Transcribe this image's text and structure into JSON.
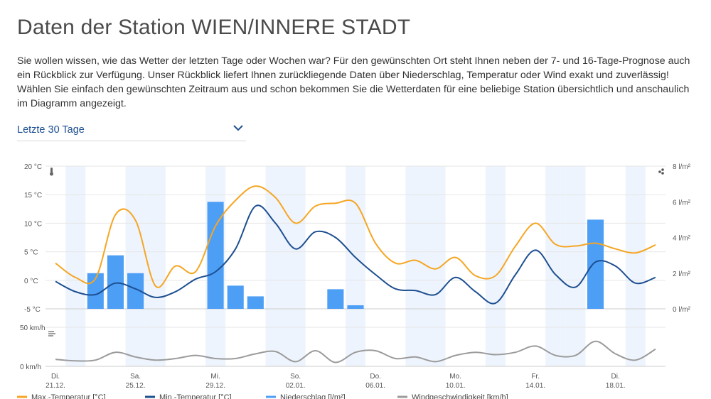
{
  "page": {
    "title": "Daten der Station WIEN/INNERE STADT",
    "intro": "Sie wollen wissen, wie das Wetter der letzten Tage oder Wochen war? Für den gewünschten Ort steht Ihnen neben der 7- und 16-Tage-Prognose auch ein Rückblick zur Verfügung. Unser Rückblick liefert Ihnen zurückliegende Daten über Niederschlag, Temperatur oder Wind exakt und zuverlässig! Wählen Sie einfach den gewünschten Zeitraum aus und schon bekommen Sie die Wetterdaten für eine beliebige Station übersichtlich und anschaulich im Diagramm angezeigt."
  },
  "period_select": {
    "value": "Letzte 30 Tage",
    "icon": "chevron-down-icon"
  },
  "colors": {
    "max_temp": "#f5a623",
    "min_temp": "#1d4f91",
    "precip": "#4d9ef5",
    "wind": "#9b9b9b",
    "weekend_band": "#eef4fd",
    "accent": "#1d4f91"
  },
  "chart_data": [
    {
      "type": "line",
      "icons": {
        "left": "thermometer-icon",
        "right": "raindrops-icon"
      },
      "y_left": {
        "ticks": [
          20,
          15,
          10,
          5,
          0,
          -5
        ],
        "labels": [
          "20 °C",
          "15 °C",
          "10 °C",
          "5 °C",
          "0 °C",
          "-5 °C"
        ],
        "range": [
          -5,
          20
        ]
      },
      "y_right": {
        "ticks": [
          8,
          6,
          4,
          2,
          0
        ],
        "labels": [
          "8 l/m²",
          "6 l/m²",
          "4 l/m²",
          "2 l/m²",
          "0 l/m²"
        ],
        "range": [
          0,
          8
        ]
      },
      "x_days": 31,
      "series": [
        {
          "name": "Max.-Temperatur [°C]",
          "axis": "left",
          "kind": "line",
          "values": [
            3.0,
            0.5,
            0.3,
            11.5,
            10.5,
            -1.0,
            2.5,
            1.5,
            9.5,
            14.0,
            16.5,
            14.5,
            10.0,
            13.0,
            13.5,
            13.5,
            6.5,
            3.0,
            3.5,
            2.0,
            4.0,
            0.8,
            0.8,
            6.0,
            10.0,
            6.3,
            6.0,
            6.5,
            5.5,
            4.8,
            6.2
          ]
        },
        {
          "name": "Min.-Temperatur [°C]",
          "axis": "left",
          "kind": "line",
          "values": [
            -0.2,
            -2.0,
            -2.5,
            -0.5,
            -1.5,
            -3.0,
            -2.0,
            0.2,
            1.5,
            5.5,
            13.0,
            10.0,
            5.5,
            8.5,
            7.5,
            4.0,
            1.0,
            -1.5,
            -1.8,
            -2.5,
            0.5,
            -2.0,
            -4.0,
            1.0,
            5.3,
            1.0,
            -1.2,
            3.2,
            2.5,
            -0.5,
            0.5
          ]
        },
        {
          "name": "Niederschlag [l/m²]",
          "axis": "right",
          "kind": "bar",
          "values": [
            0,
            0,
            2.0,
            3.0,
            2.0,
            0,
            0,
            0,
            6.0,
            1.3,
            0.7,
            0,
            0,
            0,
            1.1,
            0.2,
            0,
            0,
            0,
            0,
            0,
            0,
            0,
            0,
            0,
            0,
            0,
            5.0,
            0,
            0,
            0
          ]
        }
      ]
    },
    {
      "type": "line",
      "icons": {
        "left": "wind-icon"
      },
      "y_left": {
        "ticks": [
          50,
          0
        ],
        "labels": [
          "50 km/h",
          "0 km/h"
        ],
        "range": [
          0,
          50
        ]
      },
      "x_days": 31,
      "series": [
        {
          "name": "Windgeschwindigkeit [km/h]",
          "axis": "left",
          "kind": "line",
          "values": [
            9,
            7,
            8,
            18,
            12,
            8,
            10,
            14,
            10,
            10,
            16,
            19,
            6,
            20,
            5,
            18,
            20,
            10,
            12,
            6,
            14,
            18,
            15,
            18,
            26,
            14,
            14,
            32,
            16,
            8,
            22
          ]
        }
      ]
    }
  ],
  "x_axis": {
    "labels": [
      {
        "weekday": "Di.",
        "date": "21.12.",
        "index": 0
      },
      {
        "weekday": "Sa.",
        "date": "25.12.",
        "index": 4
      },
      {
        "weekday": "Mi.",
        "date": "29.12.",
        "index": 8
      },
      {
        "weekday": "So.",
        "date": "02.01.",
        "index": 12
      },
      {
        "weekday": "Do.",
        "date": "06.01.",
        "index": 16
      },
      {
        "weekday": "Mo.",
        "date": "10.01.",
        "index": 20
      },
      {
        "weekday": "Fr.",
        "date": "14.01.",
        "index": 24
      },
      {
        "weekday": "Di.",
        "date": "18.01.",
        "index": 28
      }
    ]
  },
  "weekend_indices": [
    1,
    4,
    5,
    8,
    11,
    12,
    15,
    18,
    19,
    22,
    25,
    26,
    29
  ],
  "legend": [
    {
      "label": "Max.-Temperatur [°C]",
      "color": "#f5a623"
    },
    {
      "label": "Min.-Temperatur [°C]",
      "color": "#1d4f91"
    },
    {
      "label": "Niederschlag [l/m²]",
      "color": "#4d9ef5"
    },
    {
      "label": "Windgeschwindigkeit [km/h]",
      "color": "#9b9b9b"
    }
  ]
}
